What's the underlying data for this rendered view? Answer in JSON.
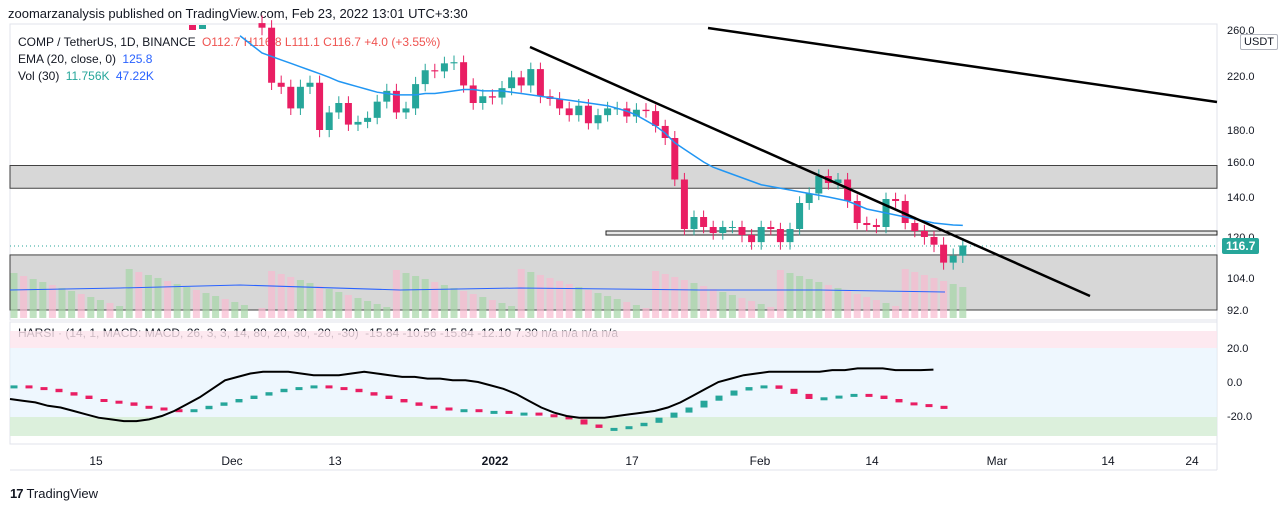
{
  "header": {
    "publisher": "zoomarzanalysis published on TradingView.com, Feb 23, 2022 13:01 UTC+3:30"
  },
  "legend": {
    "symbol": "COMP / TetherUS, 1D, BINANCE",
    "ohlc": "O112.7 H116.8 L111.1 C116.7 +4.0 (+3.55%)",
    "ema_label": "EMA (20, close, 0)",
    "ema_value": "125.8",
    "vol_label": "Vol (30)",
    "vol_value1": "11.756K",
    "vol_value2": "47.22K"
  },
  "harsi_legend": {
    "label": "HARSI · (14, 1, MACD: MACD, 26, 3, 3, 14, 80, 20, 30, -20, -30)",
    "values": "-15.84  -10.56  -15.84  -12.10  7.30  n/a  n/a  n/a  n/a"
  },
  "axis": {
    "currency": "USDT",
    "price_ticks": [
      "260.0",
      "220.0",
      "180.0",
      "160.0",
      "140.0",
      "120.0",
      "104.0",
      "92.0"
    ],
    "last_price": "116.7",
    "harsi_ticks": [
      "20.0",
      "0.0",
      "-20.0"
    ],
    "x_ticks": [
      "15",
      "Dec",
      "13",
      "2022",
      "17",
      "Feb",
      "14",
      "Mar",
      "14",
      "24"
    ]
  },
  "footer": {
    "brand": "TradingView"
  },
  "colors": {
    "up": "#26a69a",
    "down": "#e91e63",
    "ema": "#2196f3",
    "zone": "#d1d1d1"
  },
  "chart_data": {
    "type": "candlestick",
    "symbol": "COMP / TetherUS",
    "timeframe": "1D",
    "exchange": "BINANCE",
    "last_close": 116.7,
    "ema_last": 125.8,
    "candles": [
      {
        "o": 266,
        "c": 262
      },
      {
        "o": 262,
        "c": 215
      },
      {
        "o": 215,
        "c": 212
      },
      {
        "o": 212,
        "c": 196
      },
      {
        "o": 196,
        "c": 212
      },
      {
        "o": 212,
        "c": 215
      },
      {
        "o": 215,
        "c": 180
      },
      {
        "o": 180,
        "c": 193
      },
      {
        "o": 193,
        "c": 200
      },
      {
        "o": 200,
        "c": 184
      },
      {
        "o": 184,
        "c": 186
      },
      {
        "o": 186,
        "c": 189
      },
      {
        "o": 189,
        "c": 201
      },
      {
        "o": 201,
        "c": 209
      },
      {
        "o": 209,
        "c": 193
      },
      {
        "o": 193,
        "c": 196
      },
      {
        "o": 196,
        "c": 214
      },
      {
        "o": 214,
        "c": 225
      },
      {
        "o": 225,
        "c": 224
      },
      {
        "o": 224,
        "c": 231
      },
      {
        "o": 231,
        "c": 232
      },
      {
        "o": 232,
        "c": 213
      },
      {
        "o": 213,
        "c": 200
      },
      {
        "o": 200,
        "c": 205
      },
      {
        "o": 205,
        "c": 204
      },
      {
        "o": 204,
        "c": 211
      },
      {
        "o": 211,
        "c": 219
      },
      {
        "o": 219,
        "c": 213
      },
      {
        "o": 213,
        "c": 226
      },
      {
        "o": 226,
        "c": 205
      },
      {
        "o": 205,
        "c": 203
      },
      {
        "o": 203,
        "c": 196
      },
      {
        "o": 196,
        "c": 191
      },
      {
        "o": 191,
        "c": 198
      },
      {
        "o": 198,
        "c": 185
      },
      {
        "o": 185,
        "c": 191
      },
      {
        "o": 191,
        "c": 196
      },
      {
        "o": 196,
        "c": 196
      },
      {
        "o": 196,
        "c": 190
      },
      {
        "o": 190,
        "c": 195
      },
      {
        "o": 195,
        "c": 194
      },
      {
        "o": 194,
        "c": 183
      },
      {
        "o": 183,
        "c": 175
      },
      {
        "o": 175,
        "c": 150
      },
      {
        "o": 150,
        "c": 124
      },
      {
        "o": 124,
        "c": 130
      },
      {
        "o": 130,
        "c": 125
      },
      {
        "o": 125,
        "c": 122
      },
      {
        "o": 122,
        "c": 125
      },
      {
        "o": 125,
        "c": 125
      },
      {
        "o": 125,
        "c": 121
      },
      {
        "o": 121,
        "c": 118
      },
      {
        "o": 118,
        "c": 125
      },
      {
        "o": 125,
        "c": 124
      },
      {
        "o": 124,
        "c": 118
      },
      {
        "o": 118,
        "c": 124
      },
      {
        "o": 124,
        "c": 137
      },
      {
        "o": 137,
        "c": 142
      },
      {
        "o": 142,
        "c": 152
      },
      {
        "o": 152,
        "c": 148
      },
      {
        "o": 148,
        "c": 150
      },
      {
        "o": 150,
        "c": 138
      },
      {
        "o": 138,
        "c": 127
      },
      {
        "o": 127,
        "c": 126
      },
      {
        "o": 126,
        "c": 125
      },
      {
        "o": 125,
        "c": 139
      },
      {
        "o": 139,
        "c": 138
      },
      {
        "o": 138,
        "c": 127
      },
      {
        "o": 127,
        "c": 123
      },
      {
        "o": 123,
        "c": 120
      },
      {
        "o": 120,
        "c": 117
      },
      {
        "o": 117,
        "c": 110
      },
      {
        "o": 110,
        "c": 112.7
      },
      {
        "o": 112.7,
        "c": 116.7
      }
    ],
    "ema": [
      240,
      237,
      234,
      231,
      228,
      225,
      222,
      219,
      216,
      214,
      212,
      210,
      208,
      207,
      206,
      206,
      206,
      207,
      207,
      208,
      209,
      210,
      210,
      209,
      209,
      209,
      208,
      207,
      206,
      205,
      204,
      203,
      202,
      201,
      200,
      199,
      198,
      196,
      194,
      191,
      187,
      183,
      178,
      172,
      168,
      164,
      160,
      157,
      155,
      153,
      151,
      149,
      147,
      146,
      145,
      144,
      143,
      142,
      141,
      140,
      139,
      138,
      136,
      134,
      133,
      132,
      131,
      130,
      129,
      128,
      127,
      126.5,
      126,
      125.8
    ],
    "harsi_rsi": [
      -10,
      -11,
      -12,
      -14,
      -15,
      -17,
      -19,
      -21,
      -22,
      -23,
      -23,
      -22,
      -20,
      -17,
      -13,
      -9,
      -4,
      1,
      3,
      5,
      6,
      6,
      6,
      5,
      4,
      4,
      4,
      5,
      6,
      5,
      4,
      3,
      3,
      2,
      2,
      1,
      1,
      0,
      -2,
      -4,
      -7,
      -11,
      -15,
      -18,
      -20,
      -21,
      -21,
      -21,
      -20,
      -19,
      -18,
      -17,
      -15,
      -12,
      -8,
      -4,
      0,
      2,
      4,
      5,
      6,
      6,
      6,
      6,
      6,
      7,
      7,
      8,
      8,
      8,
      7,
      7,
      7,
      7.3
    ],
    "harsi_candles": [
      -2,
      -3,
      -4,
      -6,
      -8,
      -10,
      -11,
      -12,
      -14,
      -15,
      -16,
      -17,
      -16,
      -14,
      -12,
      -10,
      -8,
      -6,
      -4,
      -3,
      -2,
      -3,
      -4,
      -6,
      -8,
      -10,
      -12,
      -14,
      -15,
      -16,
      -16,
      -17,
      -17,
      -18,
      -18,
      -19,
      -20,
      -22,
      -25,
      -27,
      -27,
      -26,
      -24,
      -21,
      -18,
      -15,
      -11,
      -8,
      -5,
      -3,
      -2,
      -4,
      -7,
      -10,
      -9,
      -8,
      -7,
      -8,
      -10,
      -12,
      -13,
      -14,
      -15.84
    ],
    "zones": [
      {
        "from": 145,
        "to": 158
      },
      {
        "from": 92,
        "to": 113
      }
    ],
    "levels": [
      122
    ],
    "trendlines": [
      {
        "x1_frac": 0.0,
        "note": "long upper trendline"
      },
      {
        "note": "short steep trendline"
      }
    ]
  }
}
